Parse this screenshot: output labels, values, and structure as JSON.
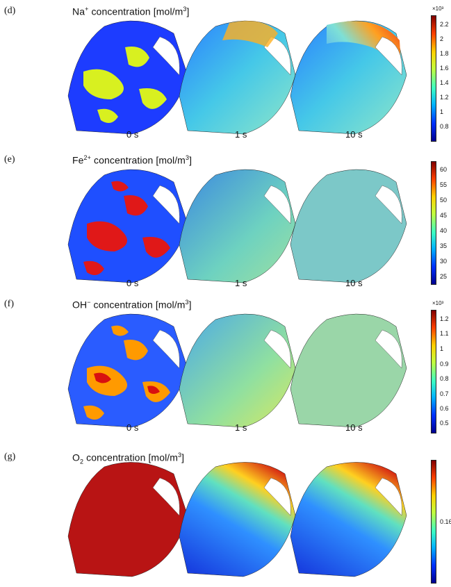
{
  "panels": [
    {
      "label": "(d)",
      "species": "Na",
      "charge": "+",
      "subscript": "",
      "rest": " concentration [mol/m",
      "unit_exp": "3",
      "close": "]",
      "times": [
        "0 s",
        "1 s",
        "10 s"
      ],
      "multiplier": "×10³",
      "ticks": [
        "2.2",
        "2",
        "1.8",
        "1.6",
        "1.4",
        "1.2",
        "1",
        "0.8"
      ]
    },
    {
      "label": "(e)",
      "species": "Fe",
      "charge": "2+",
      "subscript": "",
      "rest": " concentration [mol/m",
      "unit_exp": "3",
      "close": "]",
      "times": [
        "0 s",
        "1 s",
        "10 s"
      ],
      "multiplier": "",
      "ticks": [
        "60",
        "55",
        "50",
        "45",
        "40",
        "35",
        "30",
        "25"
      ]
    },
    {
      "label": "(f)",
      "species": "OH",
      "charge": "−",
      "subscript": "",
      "rest": " concentration [mol/m",
      "unit_exp": "3",
      "close": "]",
      "times": [
        "0 s",
        "1 s",
        "10 s"
      ],
      "multiplier": "×10³",
      "ticks": [
        "1.2",
        "1.1",
        "1",
        "0.9",
        "0.8",
        "0.7",
        "0.6",
        "0.5"
      ]
    },
    {
      "label": "(g)",
      "species": "O",
      "charge": "",
      "subscript": "2",
      "rest": " concentration [mol/m",
      "unit_exp": "3",
      "close": "]",
      "times": [],
      "multiplier": "",
      "ticks": [
        "0.16"
      ]
    }
  ],
  "colormap": [
    "#00008f",
    "#0030ff",
    "#00b0ff",
    "#40ffbf",
    "#bfff40",
    "#ffcf00",
    "#ff4000",
    "#800000"
  ]
}
